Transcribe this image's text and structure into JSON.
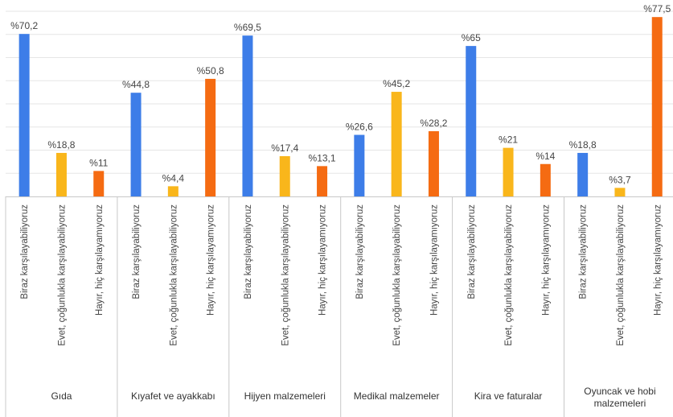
{
  "chart_data": {
    "type": "bar",
    "value_prefix": "%",
    "ylim": [
      0,
      80
    ],
    "grid": true,
    "groups": [
      {
        "name_lines": [
          "Gıda"
        ],
        "bars": [
          {
            "label": "Biraz karşılayabiliyoruz",
            "value": 70.2,
            "display": "%70,2",
            "color": "#3D7DE8"
          },
          {
            "label": "Evet, çoğunlukla karşılayabiliyoruz",
            "value": 18.8,
            "display": "%18,8",
            "color": "#F9B61B"
          },
          {
            "label": "Hayır, hiç karşılayamıyoruz",
            "value": 11,
            "display": "%11",
            "color": "#F56B12"
          }
        ]
      },
      {
        "name_lines": [
          "Kıyafet ve ayakkabı"
        ],
        "bars": [
          {
            "label": "Biraz karşılayabiliyoruz",
            "value": 44.8,
            "display": "%44,8",
            "color": "#3D7DE8"
          },
          {
            "label": "Evet, çoğunlukla karşılayabiliyoruz",
            "value": 4.4,
            "display": "%4,4",
            "color": "#F9B61B"
          },
          {
            "label": "Hayır, hiç karşılayamıyoruz",
            "value": 50.8,
            "display": "%50,8",
            "color": "#F56B12"
          }
        ]
      },
      {
        "name_lines": [
          "Hijyen malzemeleri"
        ],
        "bars": [
          {
            "label": "Biraz karşılayabiliyoruz",
            "value": 69.5,
            "display": "%69,5",
            "color": "#3D7DE8"
          },
          {
            "label": "Evet, çoğunlukla karşılayabiliyoruz",
            "value": 17.4,
            "display": "%17,4",
            "color": "#F9B61B"
          },
          {
            "label": "Hayır, hiç karşılayamıyoruz",
            "value": 13.1,
            "display": "%13,1",
            "color": "#F56B12"
          }
        ]
      },
      {
        "name_lines": [
          "Medikal malzemeler"
        ],
        "bars": [
          {
            "label": "Biraz karşılayabiliyoruz",
            "value": 26.6,
            "display": "%26,6",
            "color": "#3D7DE8"
          },
          {
            "label": "Evet, çoğunlukla karşılayabiliyoruz",
            "value": 45.2,
            "display": "%45,2",
            "color": "#F9B61B"
          },
          {
            "label": "Hayır, hiç karşılayamıyoruz",
            "value": 28.2,
            "display": "%28,2",
            "color": "#F56B12"
          }
        ]
      },
      {
        "name_lines": [
          "Kira ve faturalar"
        ],
        "bars": [
          {
            "label": "Biraz karşılayabiliyoruz",
            "value": 65,
            "display": "%65",
            "color": "#3D7DE8"
          },
          {
            "label": "Evet, çoğunlukla karşılayabiliyoruz",
            "value": 21,
            "display": "%21",
            "color": "#F9B61B"
          },
          {
            "label": "Hayır, hiç karşılayamıyoruz",
            "value": 14,
            "display": "%14",
            "color": "#F56B12"
          }
        ]
      },
      {
        "name_lines": [
          "Oyuncak ve hobi",
          "malzemeleri"
        ],
        "bars": [
          {
            "label": "Biraz karşılayabiliyoruz",
            "value": 18.8,
            "display": "%18,8",
            "color": "#3D7DE8"
          },
          {
            "label": "Evet, çoğunlukla karşılayabiliyoruz",
            "value": 3.7,
            "display": "%3,7",
            "color": "#F9B61B"
          },
          {
            "label": "Hayır, hiç karşılayamıyoruz",
            "value": 77.5,
            "display": "%77,5",
            "color": "#F56B12"
          }
        ]
      }
    ]
  }
}
